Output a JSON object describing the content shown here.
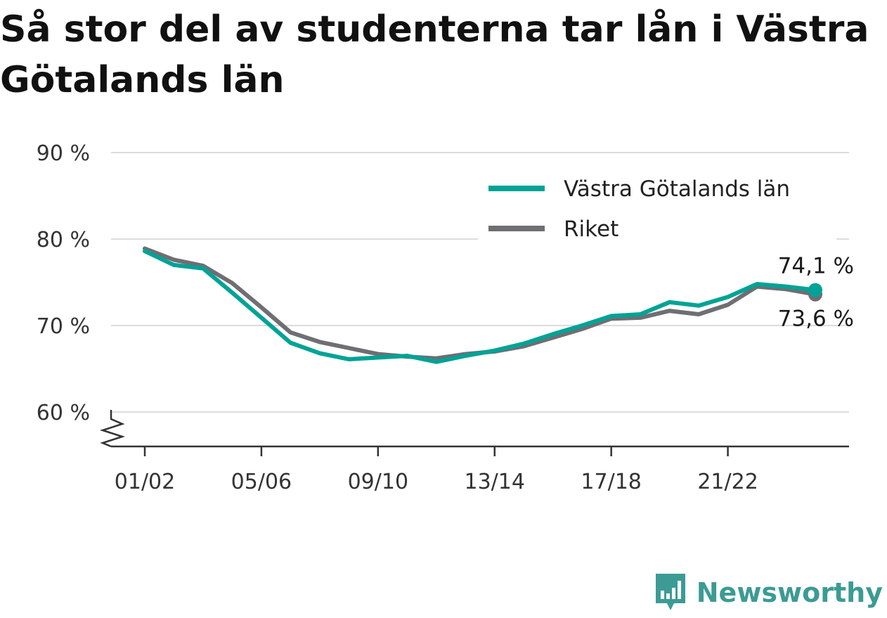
{
  "title": "Så stor del av studenterna tar lån i Västra Götalands län",
  "brand": {
    "name": "Newsworthy",
    "icon": "newsworthy-logo-icon",
    "color": "#3c9b94"
  },
  "chart_data": {
    "type": "line",
    "title": "Så stor del av studenterna tar lån i Västra Götalands län",
    "xlabel": "",
    "ylabel": "",
    "ylim": [
      60,
      90
    ],
    "y_ticks": [
      60,
      70,
      80,
      90
    ],
    "y_tick_labels": [
      "60 %",
      "70 %",
      "80 %",
      "90 %"
    ],
    "y_axis_break": true,
    "grid": true,
    "legend": "top-right",
    "x": [
      "01/02",
      "02/03",
      "03/04",
      "04/05",
      "05/06",
      "06/07",
      "07/08",
      "08/09",
      "09/10",
      "10/11",
      "11/12",
      "12/13",
      "13/14",
      "14/15",
      "15/16",
      "16/17",
      "17/18",
      "18/19",
      "19/20",
      "20/21",
      "21/22",
      "22/23",
      "23/24",
      "24/25"
    ],
    "x_tick_labels": [
      "01/02",
      "05/06",
      "09/10",
      "13/14",
      "17/18",
      "21/22"
    ],
    "series": [
      {
        "name": "Västra Götalands län",
        "color": "#00a396",
        "values": [
          78.6,
          77.0,
          76.6,
          73.8,
          70.9,
          68.0,
          66.8,
          66.1,
          66.3,
          66.5,
          65.8,
          66.5,
          67.1,
          67.9,
          69.0,
          70.0,
          71.1,
          71.3,
          72.7,
          72.3,
          73.3,
          74.8,
          74.5,
          74.1
        ],
        "end_label": "74,1 %"
      },
      {
        "name": "Riket",
        "color": "#6e6e73",
        "values": [
          78.9,
          77.6,
          76.9,
          74.9,
          72.1,
          69.2,
          68.1,
          67.4,
          66.7,
          66.4,
          66.2,
          66.7,
          67.0,
          67.6,
          68.6,
          69.6,
          70.8,
          70.9,
          71.7,
          71.3,
          72.4,
          74.5,
          74.2,
          73.6
        ],
        "end_label": "73,6 %"
      }
    ]
  }
}
